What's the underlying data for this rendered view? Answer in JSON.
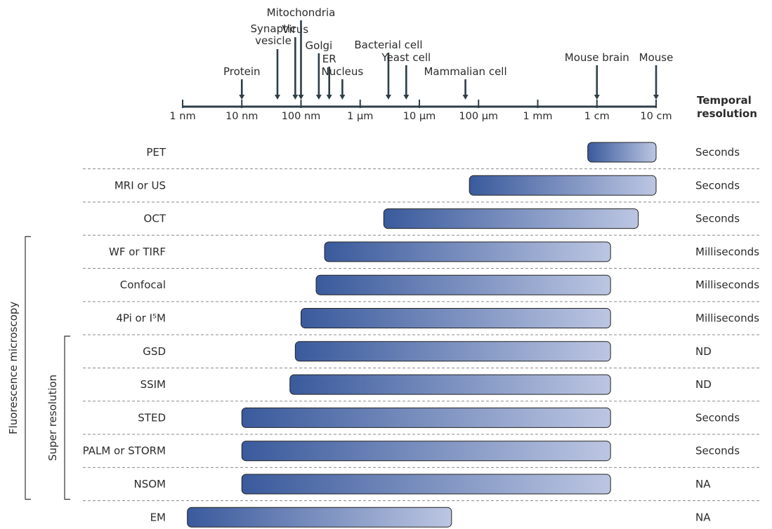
{
  "scale": {
    "ticks": [
      "1 nm",
      "10 nm",
      "100 nm",
      "1 µm",
      "10 µm",
      "100 µm",
      "1 mm",
      "1 cm",
      "10 cm"
    ],
    "header_line1": "Temporal",
    "header_line2": "resolution"
  },
  "objects": [
    {
      "label": "Protein",
      "size_m": 1e-08
    },
    {
      "label_lines": [
        "Synaptic",
        "vesicle"
      ],
      "size_m": 4e-08
    },
    {
      "label": "Virus",
      "size_m": 8e-08
    },
    {
      "label": "Mitochondria",
      "size_m": 1e-07
    },
    {
      "label": "Golgi",
      "size_m": 2e-07
    },
    {
      "label": "ER",
      "size_m": 3e-07
    },
    {
      "label": "Nucleus",
      "size_m": 5e-07
    },
    {
      "label": "Bacterial cell",
      "size_m": 3e-06
    },
    {
      "label": "Yeast cell",
      "size_m": 6e-06
    },
    {
      "label": "Mammalian cell",
      "size_m": 6e-05
    },
    {
      "label": "Mouse brain",
      "size_m": 0.01
    },
    {
      "label": "Mouse",
      "size_m": 0.1
    }
  ],
  "techniques": [
    {
      "name": "PET",
      "range_m": [
        0.007,
        0.1
      ],
      "temporal": "Seconds"
    },
    {
      "name": "MRI or US",
      "range_m": [
        7e-05,
        0.1
      ],
      "temporal": "Seconds"
    },
    {
      "name": "OCT",
      "range_m": [
        2.5e-06,
        0.05
      ],
      "temporal": "Seconds"
    },
    {
      "name": "WF or TIRF",
      "range_m": [
        2.5e-07,
        0.017
      ],
      "temporal": "Milliseconds"
    },
    {
      "name": "Confocal",
      "range_m": [
        1.8e-07,
        0.017
      ],
      "temporal": "Milliseconds"
    },
    {
      "name": "4Pi or I⁵M",
      "range_m": [
        1e-07,
        0.017
      ],
      "temporal": "Milliseconds"
    },
    {
      "name": "GSD",
      "range_m": [
        8e-08,
        0.017
      ],
      "temporal": "ND"
    },
    {
      "name": "SSIM",
      "range_m": [
        6.5e-08,
        0.017
      ],
      "temporal": "ND"
    },
    {
      "name": "STED",
      "range_m": [
        1e-08,
        0.017
      ],
      "temporal": "Seconds"
    },
    {
      "name": "PALM or STORM",
      "range_m": [
        1e-08,
        0.017
      ],
      "temporal": "Seconds"
    },
    {
      "name": "NSOM",
      "range_m": [
        1e-08,
        0.017
      ],
      "temporal": "NA"
    },
    {
      "name": "EM",
      "range_m": [
        1.2e-09,
        3.5e-05
      ],
      "temporal": "NA"
    }
  ],
  "groups": {
    "fluorescence": {
      "label": "Fluorescence microscopy",
      "from_row": "WF or TIRF",
      "to_row": "NSOM"
    },
    "super_resolution": {
      "label": "Super resolution",
      "from_row": "GSD",
      "to_row": "NSOM"
    }
  },
  "colors": {
    "axis": "#2d3e48",
    "bar_dark": "#3a5a9c",
    "bar_light": "#bcc6e2",
    "bar_border": "#222222",
    "separator": "#8a8a8a"
  }
}
